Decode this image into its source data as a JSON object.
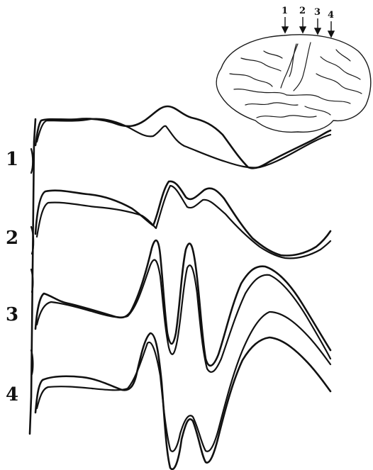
{
  "trace_labels": [
    "1",
    "2",
    "3",
    "4"
  ],
  "brain": {
    "site_labels": [
      "1",
      "2",
      "3",
      "4"
    ]
  }
}
